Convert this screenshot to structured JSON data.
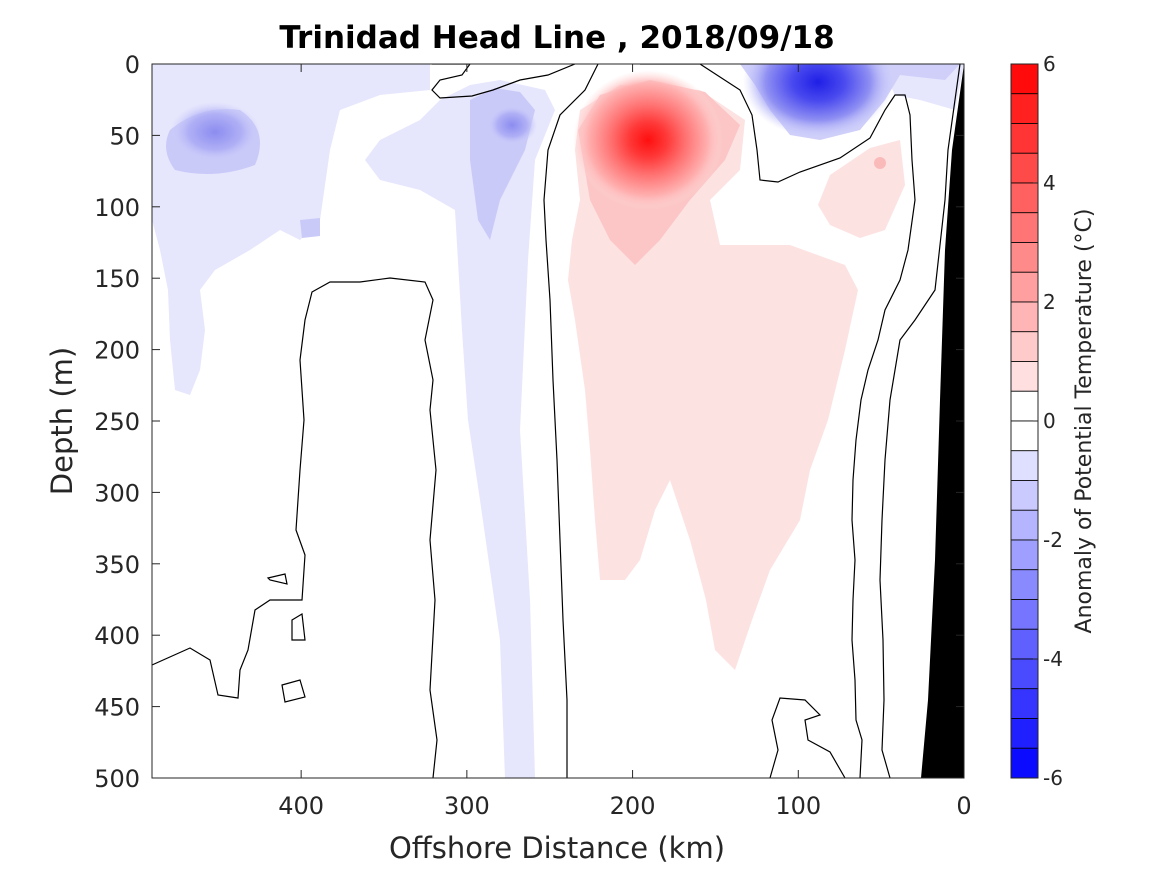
{
  "chart_data": {
    "type": "heatmap",
    "title": "Trinidad Head Line , 2018/09/18",
    "xlabel": "Offshore Distance (km)",
    "ylabel": "Depth (m)",
    "xlim": [
      0,
      490
    ],
    "x_reversed": true,
    "ylim": [
      0,
      500
    ],
    "y_reversed": true,
    "x_ticks": [
      400,
      300,
      200,
      100,
      0
    ],
    "y_ticks": [
      0,
      50,
      100,
      150,
      200,
      250,
      300,
      350,
      400,
      450,
      500
    ],
    "colorbar": {
      "label": "Anomaly of Potential Temperature (°C)",
      "range": [
        -6,
        6
      ],
      "ticks": [
        6,
        4,
        2,
        0,
        -2,
        -4,
        -6
      ],
      "levels_step": 0.5,
      "colormap": "blue-white-red"
    },
    "features": [
      {
        "type": "warm_anomaly_core",
        "x_km": 190,
        "depth_m": 50,
        "value": 5.5
      },
      {
        "type": "warm_anomaly_tongue",
        "x_range_km": [
          150,
          240
        ],
        "depth_range_m": [
          150,
          420
        ],
        "value": 0.8
      },
      {
        "type": "cold_anomaly_core",
        "x_km": 85,
        "depth_m": 5,
        "value": -4.5
      },
      {
        "type": "cold_anomaly",
        "x_km": 450,
        "depth_m": 50,
        "value": -1.5
      },
      {
        "type": "cold_anomaly_band",
        "x_range_km": [
          260,
          300
        ],
        "depth_range_m": [
          30,
          500
        ],
        "value": -1.0
      },
      {
        "type": "seafloor_bathymetry",
        "x_range_km": [
          0,
          27
        ],
        "depth_range_m": [
          0,
          500
        ]
      }
    ],
    "contour_level": 0,
    "grid": false
  }
}
